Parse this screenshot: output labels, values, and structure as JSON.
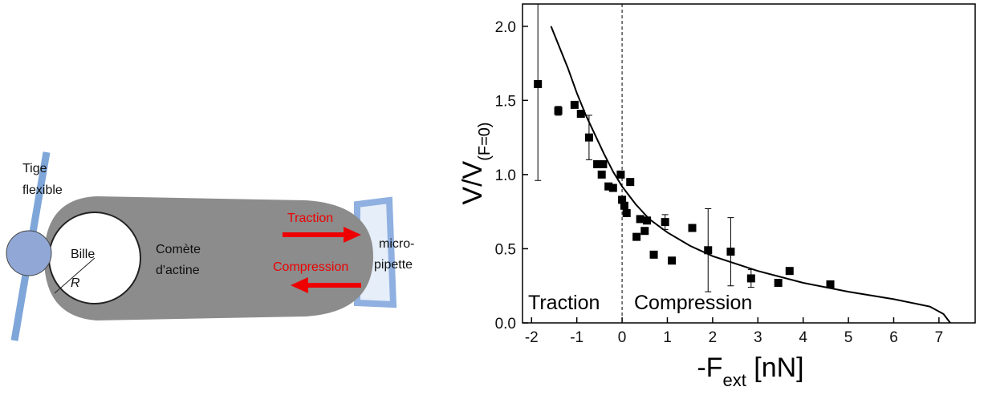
{
  "diagram": {
    "rod_label": [
      "Tige",
      "flexible"
    ],
    "bead_label": "Bille",
    "radius_label": "R",
    "comet_label": [
      "Comète",
      "d'actine"
    ],
    "traction_label": "Traction",
    "compression_label": "Compression",
    "pipette_label": [
      "micro-",
      "pipette"
    ]
  },
  "chart_data": {
    "type": "scatter",
    "y_label": "V/V",
    "y_label_sub": "(F=0)",
    "x_label": "-F",
    "x_label_sub": "ext",
    "x_label_unit": " [nN]",
    "annotations": [
      "Traction",
      "Compression"
    ],
    "xlim": [
      -2.2,
      7.8
    ],
    "ylim": [
      0,
      2.15
    ],
    "xticks": [
      -2,
      -1,
      0,
      1,
      2,
      3,
      4,
      5,
      6,
      7
    ],
    "yticks": [
      {
        "value": 0,
        "label": "0.0"
      },
      0.5,
      {
        "value": 1,
        "label": "1.0"
      },
      1.5,
      {
        "value": 2,
        "label": "2.0"
      }
    ],
    "vline": 0,
    "series": [
      {
        "name": "data",
        "color": "#000000",
        "x": [
          -1.86,
          -1.41,
          -1.05,
          -0.91,
          -0.73,
          -0.55,
          -0.42,
          -0.45,
          -0.3,
          -0.2,
          -0.03,
          0.0,
          0.05,
          0.1,
          0.18,
          0.32,
          0.4,
          0.5,
          0.55,
          0.7,
          0.95,
          1.1,
          1.55,
          1.9,
          2.4,
          2.85,
          3.45,
          3.7,
          4.6
        ],
        "values": [
          1.61,
          1.43,
          1.47,
          1.41,
          1.25,
          1.07,
          1.07,
          1.0,
          0.92,
          0.91,
          1.0,
          0.83,
          0.79,
          0.74,
          0.95,
          0.58,
          0.7,
          0.62,
          0.69,
          0.46,
          0.68,
          0.42,
          0.64,
          0.49,
          0.48,
          0.3,
          0.27,
          0.35,
          0.26
        ],
        "errors": [
          0.65,
          0.03,
          null,
          null,
          0.15,
          null,
          null,
          null,
          null,
          null,
          null,
          null,
          null,
          null,
          null,
          null,
          null,
          null,
          null,
          null,
          0.05,
          null,
          null,
          0.28,
          0.23,
          0.06,
          null,
          null,
          null
        ]
      },
      {
        "name": "fit",
        "color": "#000000",
        "x": [
          -1.57,
          -1.2,
          -1,
          -0.8,
          -0.6,
          -0.4,
          -0.2,
          0,
          0.3,
          0.6,
          1,
          1.5,
          2,
          3,
          4,
          5,
          6,
          6.8,
          7.1,
          7.25
        ],
        "values": [
          2.0,
          1.72,
          1.55,
          1.4,
          1.27,
          1.14,
          1.02,
          0.92,
          0.8,
          0.7,
          0.61,
          0.52,
          0.45,
          0.35,
          0.27,
          0.21,
          0.16,
          0.11,
          0.06,
          0
        ]
      }
    ]
  }
}
